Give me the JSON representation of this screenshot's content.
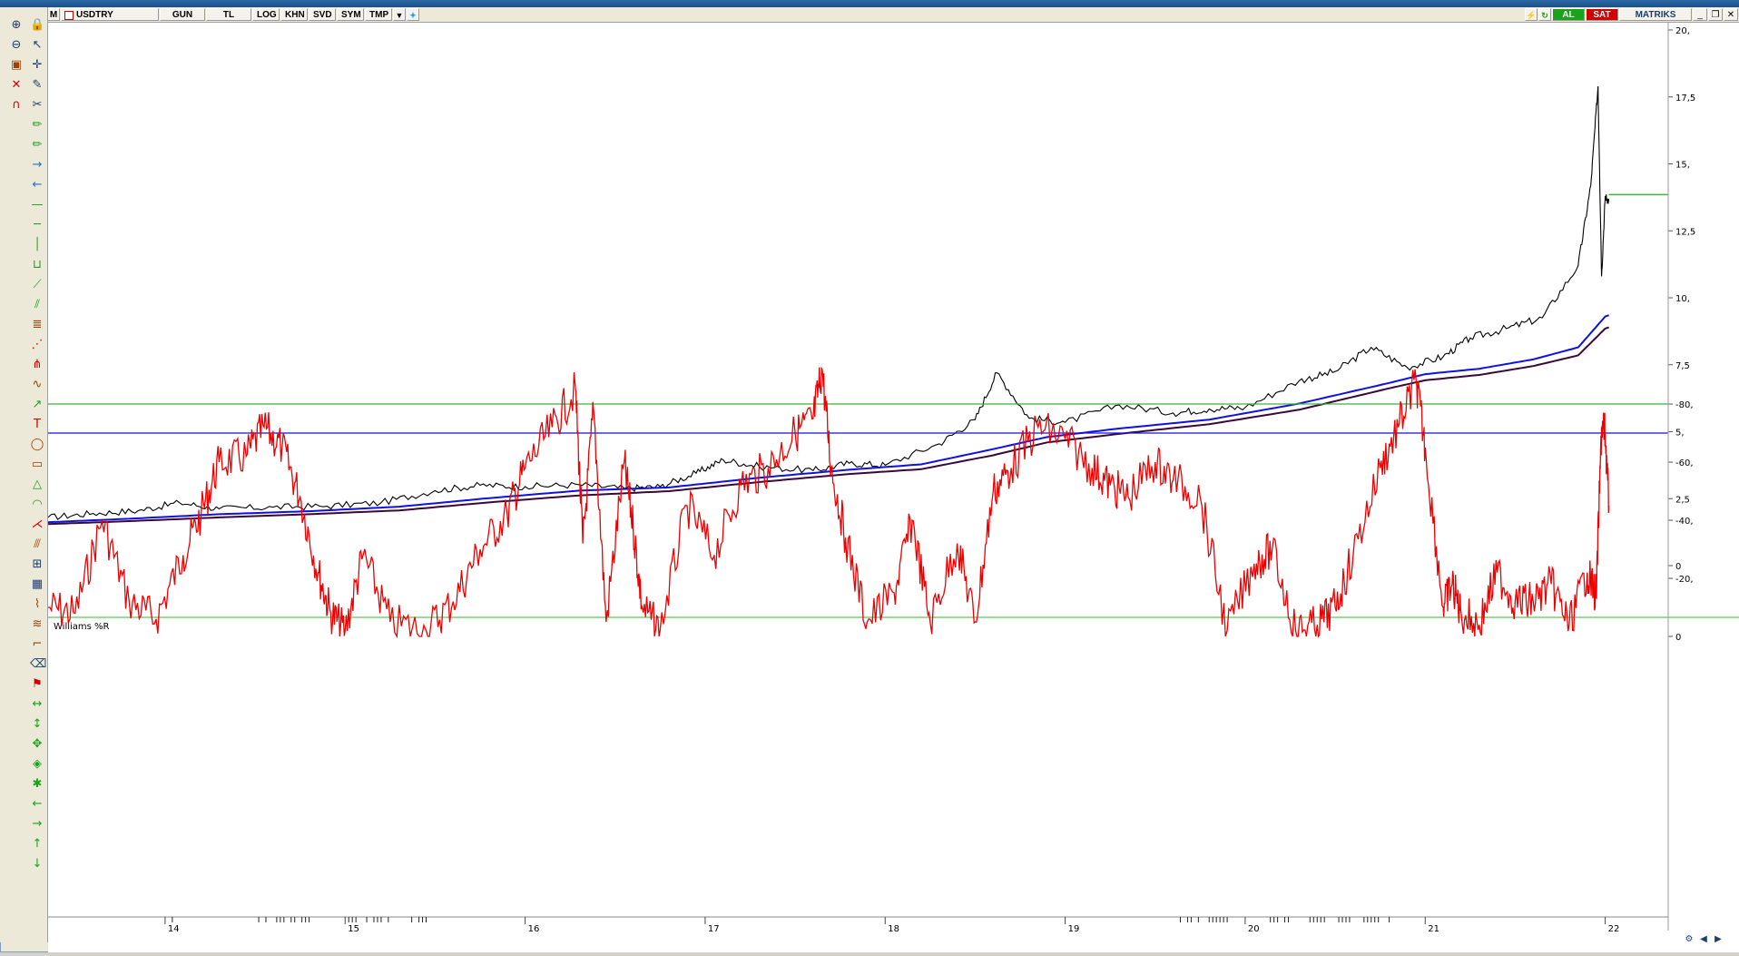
{
  "toolbar": {
    "menu_label": "M",
    "symbol": "USDTRY",
    "buttons": [
      "GUN",
      "TL",
      "LOG",
      "KHN",
      "SVD",
      "SYM",
      "TMP"
    ],
    "buy_label": "AL",
    "sell_label": "SAT",
    "brand": "MATRIKS",
    "buy_color": "#1aa31a",
    "sell_color": "#d00000"
  },
  "left_tools": [
    "zoom-in-icon",
    "lock-icon",
    "zoom-out-icon",
    "cursor-arrow-icon",
    "chart-window-icon",
    "crosshair-icon",
    "chart-cross-icon",
    "pencil-icon",
    "magnet-icon",
    "cut-icon",
    "pencil-green-icon",
    "pencil-green-icon",
    "arrow-right-icon",
    "arrow-left-icon",
    "horizontal-line-icon",
    "line-icon",
    "vertical-line-icon",
    "bracket-icon",
    "trend-line-icon",
    "parallel-channel-icon",
    "fibonacci-icon",
    "gann-icon",
    "pitchfork-icon",
    "cycle-icon",
    "regression-icon",
    "text-icon",
    "ellipse-icon",
    "rectangle-icon",
    "triangle-icon",
    "arc-icon",
    "fan-icon",
    "speed-lines-icon",
    "ruler-icon",
    "grid-icon",
    "zigzag-icon",
    "wave-icon",
    "brush-icon",
    "eraser-icon",
    "flag-icon",
    "zoom-h-icon",
    "zoom-v-icon",
    "expand-icon",
    "compress-icon",
    "gear-icon",
    "arrow-left-nav-icon",
    "arrow-right-nav-icon",
    "arrow-up-nav-icon",
    "arrow-down-nav-icon"
  ],
  "chart_data": [
    {
      "type": "line",
      "series": [
        {
          "name": "",
          "color": "#000000",
          "x": [
            2013.35,
            2013.6,
            2013.85,
            2014.08,
            2014.3,
            2014.6,
            2014.9,
            2015.2,
            2015.5,
            2015.75,
            2016.0,
            2016.3,
            2016.55,
            2016.75,
            2016.95,
            2017.1,
            2017.3,
            2017.6,
            2017.8,
            2018.0,
            2018.3,
            2018.5,
            2018.62,
            2018.8,
            2019.0,
            2019.3,
            2019.6,
            2019.8,
            2020.0,
            2020.3,
            2020.5,
            2020.7,
            2020.9,
            2021.1,
            2021.25,
            2021.45,
            2021.65,
            2021.85,
            2021.92,
            2021.96,
            2021.98,
            2022.0,
            2022.02
          ],
          "y": [
            1.8,
            1.95,
            2.05,
            2.35,
            2.12,
            2.18,
            2.22,
            2.35,
            2.8,
            3.0,
            2.95,
            3.02,
            2.88,
            2.95,
            3.45,
            3.95,
            3.7,
            3.55,
            3.82,
            3.75,
            4.55,
            5.45,
            7.2,
            5.5,
            5.35,
            6.0,
            5.7,
            5.85,
            5.9,
            6.9,
            7.25,
            8.15,
            7.4,
            7.8,
            8.5,
            8.85,
            9.25,
            11.2,
            14.2,
            17.9,
            10.8,
            13.8,
            13.6
          ]
        },
        {
          "name": "",
          "color": "#1010e0",
          "x": [
            2013.35,
            2013.8,
            2014.3,
            2014.8,
            2015.3,
            2015.8,
            2016.3,
            2016.8,
            2017.3,
            2017.8,
            2018.2,
            2018.6,
            2018.9,
            2019.3,
            2019.8,
            2020.3,
            2020.8,
            2021.0,
            2021.3,
            2021.6,
            2021.85,
            2022.0,
            2022.02
          ],
          "y": [
            1.62,
            1.75,
            1.92,
            2.03,
            2.2,
            2.52,
            2.8,
            2.92,
            3.28,
            3.58,
            3.78,
            4.35,
            4.8,
            5.12,
            5.45,
            6.05,
            6.82,
            7.15,
            7.35,
            7.7,
            8.15,
            9.3,
            9.35
          ]
        },
        {
          "name": "",
          "color": "#3a0838",
          "x": [
            2013.35,
            2013.8,
            2014.3,
            2014.8,
            2015.3,
            2015.8,
            2016.3,
            2016.8,
            2017.3,
            2017.8,
            2018.2,
            2018.6,
            2018.9,
            2019.3,
            2019.8,
            2020.3,
            2020.8,
            2021.0,
            2021.3,
            2021.6,
            2021.85,
            2022.0,
            2022.02
          ],
          "y": [
            1.55,
            1.66,
            1.8,
            1.92,
            2.06,
            2.36,
            2.62,
            2.78,
            3.12,
            3.42,
            3.6,
            4.12,
            4.6,
            4.92,
            5.28,
            5.82,
            6.62,
            6.92,
            7.12,
            7.45,
            7.85,
            8.85,
            8.9
          ]
        }
      ],
      "horizontal_line": {
        "y": 13.85,
        "color": "#3ab53a"
      },
      "y_ticks": [
        "20,",
        "17,5",
        "15,",
        "12,5",
        "10,",
        "7,5",
        "5,",
        "2,5",
        "0"
      ],
      "x_ticks": [
        "14",
        "15",
        "16",
        "17",
        "18",
        "19",
        "20",
        "21",
        "22"
      ],
      "ylim": [
        0,
        20
      ]
    },
    {
      "type": "line",
      "title": "Williams %R",
      "series": [
        {
          "name": "",
          "color": "#ee0000",
          "x": [
            2013.35,
            2013.5,
            2013.65,
            2013.8,
            2013.95,
            2014.1,
            2014.2,
            2014.3,
            2014.45,
            2014.55,
            2014.65,
            2014.75,
            2014.85,
            2014.92,
            2015.0,
            2015.1,
            2015.25,
            2015.45,
            2015.6,
            2015.75,
            2015.9,
            2016.0,
            2016.15,
            2016.28,
            2016.32,
            2016.38,
            2016.45,
            2016.55,
            2016.6,
            2016.65,
            2016.75,
            2016.9,
            2017.05,
            2017.2,
            2017.35,
            2017.5,
            2017.6,
            2017.65,
            2017.7,
            2017.78,
            2017.9,
            2018.05,
            2018.15,
            2018.25,
            2018.4,
            2018.5,
            2018.6,
            2018.7,
            2018.85,
            2019.0,
            2019.15,
            2019.25,
            2019.35,
            2019.5,
            2019.6,
            2019.75,
            2019.9,
            2020.05,
            2020.15,
            2020.28,
            2020.4,
            2020.5,
            2020.6,
            2020.75,
            2020.85,
            2020.95,
            2021.0,
            2021.1,
            2021.15,
            2021.2,
            2021.3,
            2021.4,
            2021.5,
            2021.6,
            2021.7,
            2021.8,
            2021.9,
            2021.95,
            2021.98,
            2022.0,
            2022.02
          ],
          "y": [
            -10,
            -8,
            -40,
            -12,
            -6,
            -28,
            -42,
            -60,
            -62,
            -72,
            -65,
            -48,
            -22,
            -8,
            -2,
            -28,
            -5,
            -2,
            -12,
            -30,
            -42,
            -58,
            -72,
            -85,
            -32,
            -78,
            -5,
            -60,
            -38,
            -10,
            -2,
            -45,
            -28,
            -52,
            -58,
            -70,
            -75,
            -92,
            -58,
            -34,
            -5,
            -15,
            -40,
            -5,
            -32,
            -5,
            -50,
            -58,
            -72,
            -68,
            -58,
            -52,
            -48,
            -60,
            -54,
            -48,
            -2,
            -25,
            -30,
            -2,
            -4,
            -10,
            -28,
            -58,
            -72,
            -88,
            -65,
            -10,
            -18,
            -8,
            -4,
            -22,
            -12,
            -12,
            -18,
            -4,
            -22,
            -14,
            -72,
            -70,
            -45
          ]
        }
      ],
      "ref_lines": [
        {
          "y": -70,
          "color": "#1010e0"
        },
        {
          "y": -80,
          "color": "#3ab53a"
        }
      ],
      "y_ticks": [
        "0",
        "-20,",
        "-40,",
        "-60,",
        "-80,"
      ],
      "ylim": [
        -93,
        2
      ]
    }
  ]
}
